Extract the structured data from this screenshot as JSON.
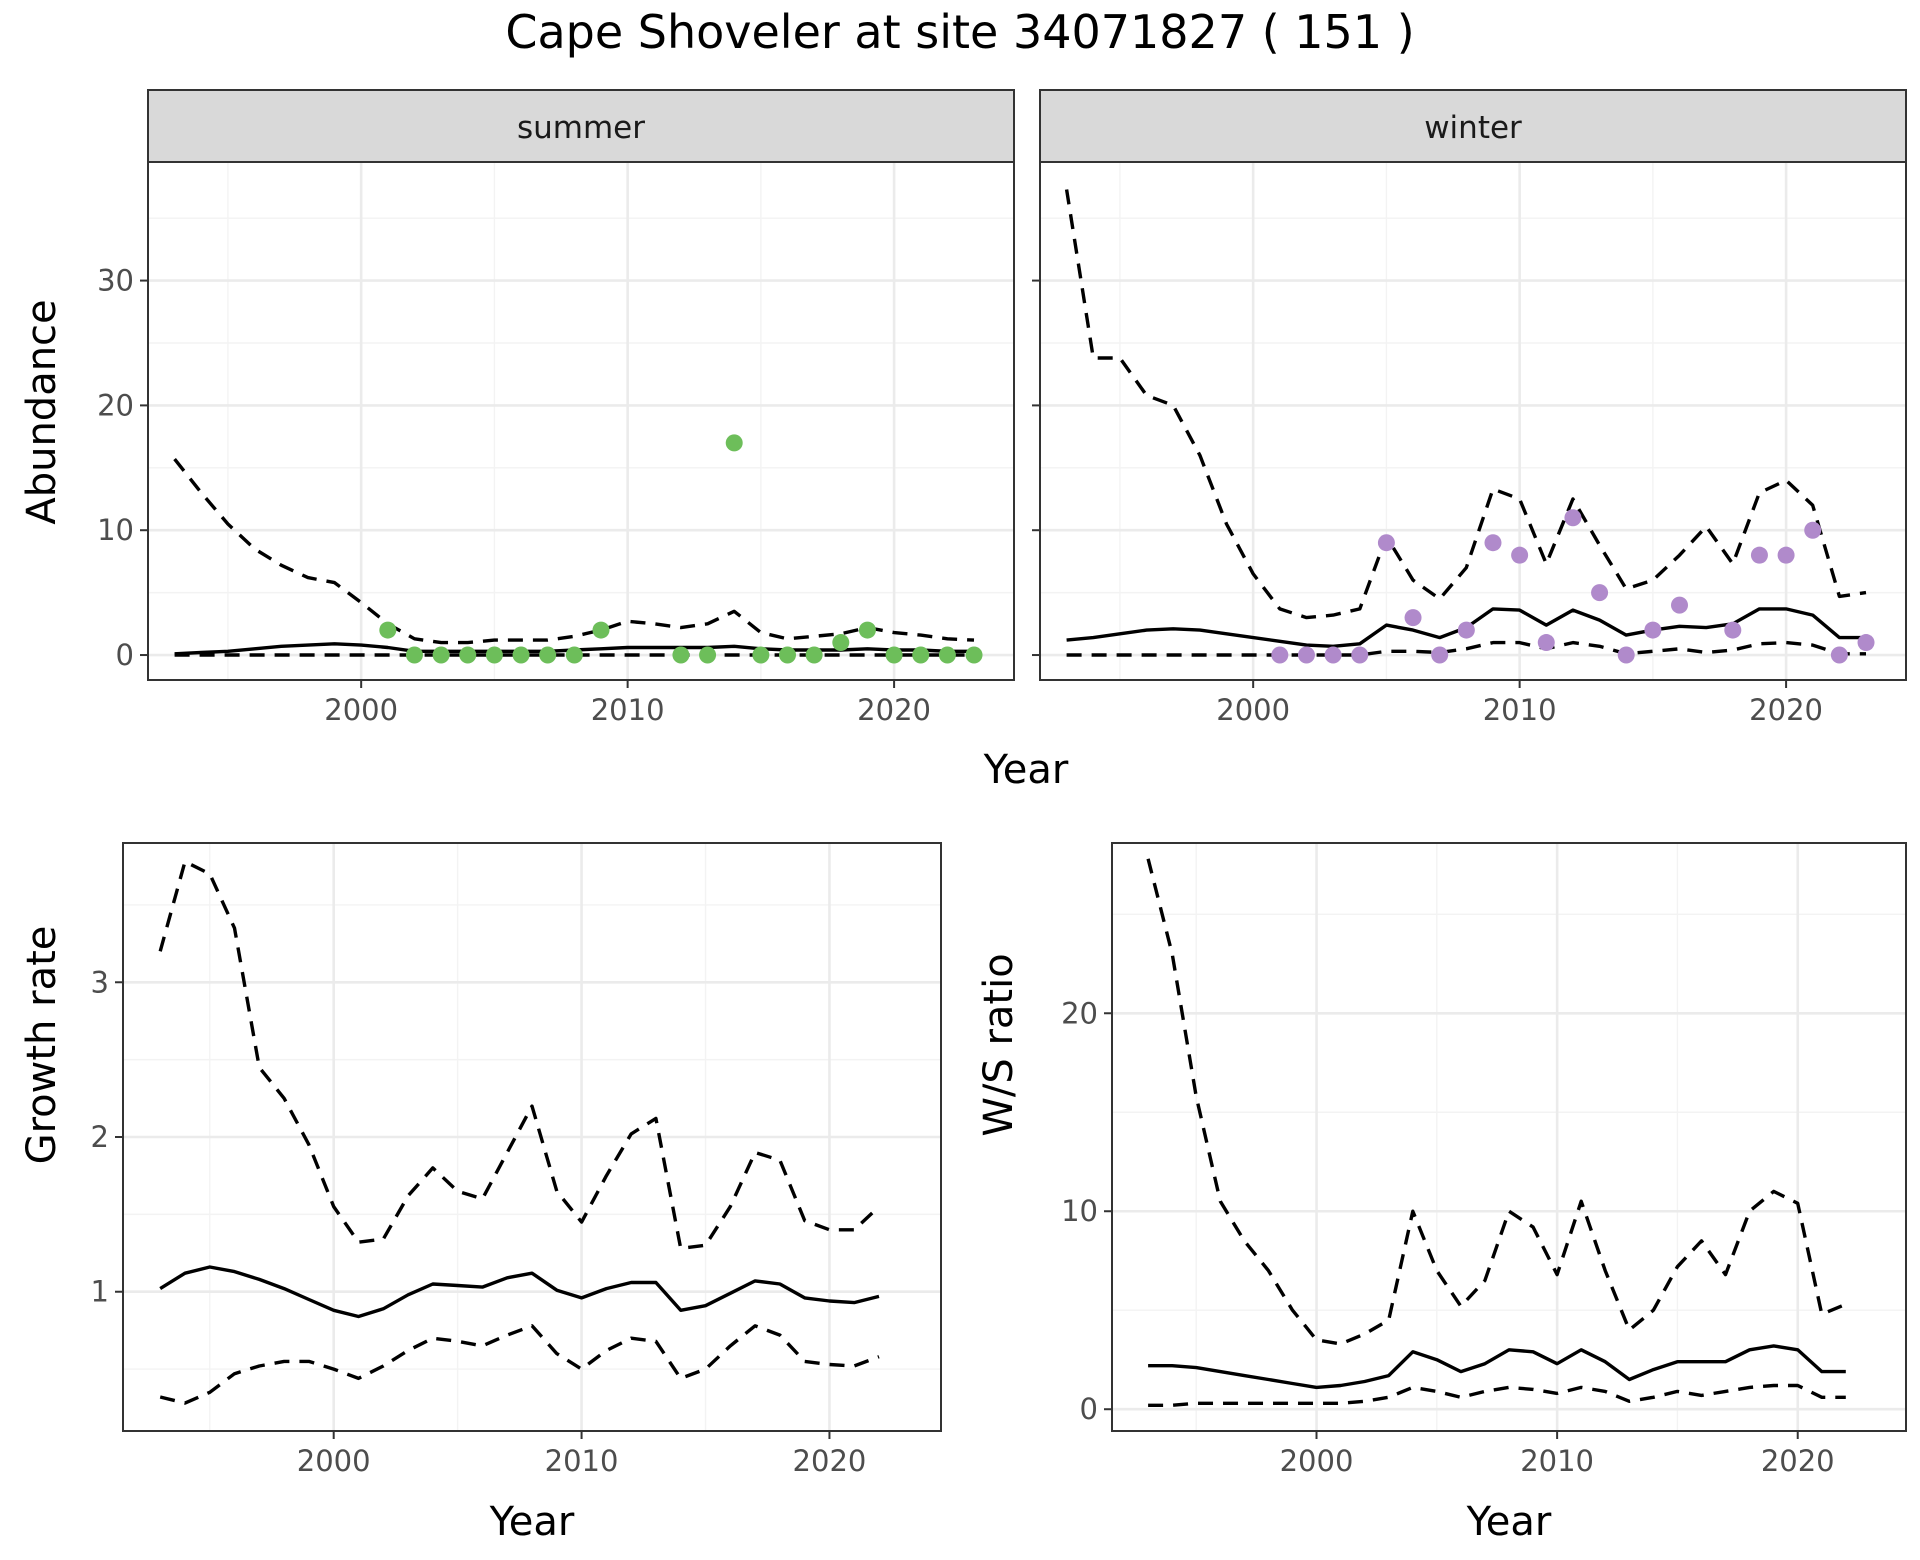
{
  "title": "Cape Shoveler at site 34071827 ( 151 )",
  "colors": {
    "summer_points": "#6dbe5a",
    "winter_points": "#b08acb",
    "lines": "#000000"
  },
  "chart_data": [
    {
      "id": "abundance-summer",
      "type": "line",
      "strip": "summer",
      "xlabel": "",
      "ylabel": "Abundance",
      "xlim": [
        1992,
        2024.5
      ],
      "ylim": [
        -2,
        39.5
      ],
      "xticks": [
        2000,
        2010,
        2020
      ],
      "yticks": [
        0,
        10,
        20,
        30
      ],
      "grid": true,
      "series": [
        {
          "style": "dashed",
          "x": [
            1993,
            1994,
            1995,
            1996,
            1997,
            1998,
            1999,
            2000,
            2001,
            2002,
            2003,
            2004,
            2005,
            2006,
            2007,
            2008,
            2009,
            2010,
            2011,
            2012,
            2013,
            2014,
            2015,
            2016,
            2017,
            2018,
            2019,
            2020,
            2021,
            2022,
            2023
          ],
          "y": [
            15.7,
            13,
            10.5,
            8.5,
            7.2,
            6.2,
            5.8,
            4.2,
            2.5,
            1.3,
            1.0,
            1.0,
            1.2,
            1.2,
            1.2,
            1.5,
            2.0,
            2.7,
            2.5,
            2.2,
            2.5,
            3.5,
            1.8,
            1.3,
            1.5,
            1.7,
            2.2,
            1.8,
            1.6,
            1.3,
            1.2
          ]
        },
        {
          "style": "solid",
          "x": [
            1993,
            1994,
            1995,
            1996,
            1997,
            1998,
            1999,
            2000,
            2001,
            2002,
            2003,
            2004,
            2005,
            2006,
            2007,
            2008,
            2009,
            2010,
            2011,
            2012,
            2013,
            2014,
            2015,
            2016,
            2017,
            2018,
            2019,
            2020,
            2021,
            2022,
            2023
          ],
          "y": [
            0.1,
            0.2,
            0.3,
            0.5,
            0.7,
            0.8,
            0.9,
            0.8,
            0.6,
            0.3,
            0.3,
            0.3,
            0.3,
            0.3,
            0.3,
            0.4,
            0.5,
            0.6,
            0.6,
            0.6,
            0.6,
            0.7,
            0.5,
            0.4,
            0.4,
            0.4,
            0.5,
            0.4,
            0.4,
            0.3,
            0.3
          ]
        },
        {
          "style": "dashed",
          "x": [
            1993,
            1994,
            1995,
            1996,
            1997,
            1998,
            1999,
            2000,
            2001,
            2002,
            2003,
            2004,
            2005,
            2006,
            2007,
            2008,
            2009,
            2010,
            2011,
            2012,
            2013,
            2014,
            2015,
            2016,
            2017,
            2018,
            2019,
            2020,
            2021,
            2022,
            2023
          ],
          "y": [
            0,
            0,
            0,
            0,
            0,
            0,
            0,
            0,
            0,
            0,
            0,
            0,
            0,
            0,
            0,
            0,
            0,
            0,
            0,
            0,
            0,
            0,
            0,
            0,
            0,
            0,
            0,
            0,
            0,
            0,
            0
          ]
        }
      ],
      "points": {
        "x": [
          2001,
          2002,
          2003,
          2004,
          2005,
          2006,
          2007,
          2008,
          2009,
          2012,
          2013,
          2014,
          2015,
          2016,
          2017,
          2018,
          2019,
          2020,
          2021,
          2022,
          2023
        ],
        "y": [
          2,
          0,
          0,
          0,
          0,
          0,
          0,
          0,
          2,
          0,
          0,
          17,
          0,
          0,
          0,
          1,
          2,
          0,
          0,
          0,
          0
        ]
      }
    },
    {
      "id": "abundance-winter",
      "type": "line",
      "strip": "winter",
      "xlabel": "",
      "ylabel": "",
      "xlim": [
        1992,
        2024.5
      ],
      "ylim": [
        -2,
        39.5
      ],
      "xticks": [
        2000,
        2010,
        2020
      ],
      "yticks": [
        0,
        10,
        20,
        30
      ],
      "grid": true,
      "series": [
        {
          "style": "dashed",
          "x": [
            1993,
            1994,
            1995,
            1996,
            1997,
            1998,
            1999,
            2000,
            2001,
            2002,
            2003,
            2004,
            2005,
            2006,
            2007,
            2008,
            2009,
            2010,
            2011,
            2012,
            2013,
            2014,
            2015,
            2016,
            2017,
            2018,
            2019,
            2020,
            2021,
            2022,
            2023
          ],
          "y": [
            37.3,
            23.8,
            23.8,
            20.8,
            20,
            16,
            10.5,
            6.5,
            3.7,
            3.0,
            3.2,
            3.7,
            9.5,
            6.0,
            4.5,
            7.0,
            13.3,
            12.5,
            7.3,
            12.5,
            8.8,
            5.3,
            6.0,
            8.0,
            10.3,
            7.3,
            13.0,
            14.0,
            12.0,
            4.7,
            5.0
          ]
        },
        {
          "style": "solid",
          "x": [
            1993,
            1994,
            1995,
            1996,
            1997,
            1998,
            1999,
            2000,
            2001,
            2002,
            2003,
            2004,
            2005,
            2006,
            2007,
            2008,
            2009,
            2010,
            2011,
            2012,
            2013,
            2014,
            2015,
            2016,
            2017,
            2018,
            2019,
            2020,
            2021,
            2022,
            2023
          ],
          "y": [
            1.2,
            1.4,
            1.7,
            2.0,
            2.1,
            2.0,
            1.7,
            1.4,
            1.1,
            0.8,
            0.7,
            0.9,
            2.4,
            2.0,
            1.4,
            2.2,
            3.7,
            3.6,
            2.4,
            3.6,
            2.8,
            1.6,
            2.0,
            2.3,
            2.2,
            2.5,
            3.7,
            3.7,
            3.2,
            1.4,
            1.4
          ]
        },
        {
          "style": "dashed",
          "x": [
            1993,
            1994,
            1995,
            1996,
            1997,
            1998,
            1999,
            2000,
            2001,
            2002,
            2003,
            2004,
            2005,
            2006,
            2007,
            2008,
            2009,
            2010,
            2011,
            2012,
            2013,
            2014,
            2015,
            2016,
            2017,
            2018,
            2019,
            2020,
            2021,
            2022,
            2023
          ],
          "y": [
            0,
            0,
            0,
            0,
            0,
            0,
            0,
            0,
            0,
            0,
            0,
            0,
            0.3,
            0.3,
            0.2,
            0.5,
            1.0,
            1.0,
            0.5,
            1.0,
            0.7,
            0.1,
            0.3,
            0.5,
            0.2,
            0.4,
            0.9,
            1.0,
            0.8,
            0.1,
            0.1
          ]
        }
      ],
      "points": {
        "x": [
          2001,
          2002,
          2003,
          2004,
          2005,
          2006,
          2007,
          2008,
          2009,
          2010,
          2011,
          2012,
          2013,
          2014,
          2015,
          2016,
          2018,
          2019,
          2020,
          2021,
          2022,
          2023
        ],
        "y": [
          0,
          0,
          0,
          0,
          9,
          3,
          0,
          2,
          9,
          8,
          1,
          11,
          5,
          0,
          2,
          4,
          2,
          8,
          8,
          10,
          0,
          1
        ]
      }
    },
    {
      "id": "growth-rate",
      "type": "line",
      "xlabel": "Year",
      "ylabel": "Growth rate",
      "xlim": [
        1991.5,
        2024.5
      ],
      "ylim": [
        0.1,
        3.9
      ],
      "xticks": [
        2000,
        2010,
        2020
      ],
      "yticks": [
        1,
        2,
        3
      ],
      "grid": true,
      "series": [
        {
          "style": "dashed",
          "x": [
            1993,
            1994,
            1995,
            1996,
            1997,
            1998,
            1999,
            2000,
            2001,
            2002,
            2003,
            2004,
            2005,
            2006,
            2007,
            2008,
            2009,
            2010,
            2011,
            2012,
            2013,
            2014,
            2015,
            2016,
            2017,
            2018,
            2019,
            2020,
            2021,
            2022
          ],
          "y": [
            3.2,
            3.78,
            3.7,
            3.35,
            2.45,
            2.25,
            1.95,
            1.55,
            1.32,
            1.34,
            1.62,
            1.8,
            1.65,
            1.6,
            1.9,
            2.2,
            1.65,
            1.45,
            1.75,
            2.02,
            2.12,
            1.28,
            1.3,
            1.55,
            1.9,
            1.85,
            1.46,
            1.4,
            1.4,
            1.55
          ]
        },
        {
          "style": "solid",
          "x": [
            1993,
            1994,
            1995,
            1996,
            1997,
            1998,
            1999,
            2000,
            2001,
            2002,
            2003,
            2004,
            2005,
            2006,
            2007,
            2008,
            2009,
            2010,
            2011,
            2012,
            2013,
            2014,
            2015,
            2016,
            2017,
            2018,
            2019,
            2020,
            2021,
            2022
          ],
          "y": [
            1.02,
            1.12,
            1.16,
            1.13,
            1.08,
            1.02,
            0.95,
            0.88,
            0.84,
            0.89,
            0.98,
            1.05,
            1.04,
            1.03,
            1.09,
            1.12,
            1.01,
            0.96,
            1.02,
            1.06,
            1.06,
            0.88,
            0.91,
            0.99,
            1.07,
            1.05,
            0.96,
            0.94,
            0.93,
            0.97
          ]
        },
        {
          "style": "dashed",
          "x": [
            1993,
            1994,
            1995,
            1996,
            1997,
            1998,
            1999,
            2000,
            2001,
            2002,
            2003,
            2004,
            2005,
            2006,
            2007,
            2008,
            2009,
            2010,
            2011,
            2012,
            2013,
            2014,
            2015,
            2016,
            2017,
            2018,
            2019,
            2020,
            2021,
            2022
          ],
          "y": [
            0.32,
            0.28,
            0.35,
            0.47,
            0.52,
            0.55,
            0.55,
            0.5,
            0.44,
            0.52,
            0.62,
            0.7,
            0.68,
            0.65,
            0.72,
            0.78,
            0.6,
            0.5,
            0.62,
            0.7,
            0.68,
            0.44,
            0.5,
            0.65,
            0.78,
            0.72,
            0.55,
            0.53,
            0.52,
            0.58
          ]
        }
      ]
    },
    {
      "id": "ws-ratio",
      "type": "line",
      "xlabel": "Year",
      "ylabel": "W/S ratio",
      "xlim": [
        1991.5,
        2024.5
      ],
      "ylim": [
        -1.1,
        28.6
      ],
      "xticks": [
        2000,
        2010,
        2020
      ],
      "yticks": [
        0,
        10,
        20
      ],
      "grid": true,
      "series": [
        {
          "style": "dashed",
          "x": [
            1993,
            1994,
            1995,
            1996,
            1997,
            1998,
            1999,
            2000,
            2001,
            2002,
            2003,
            2004,
            2005,
            2006,
            2007,
            2008,
            2009,
            2010,
            2011,
            2012,
            2013,
            2014,
            2015,
            2016,
            2017,
            2018,
            2019,
            2020,
            2021,
            2022
          ],
          "y": [
            27.8,
            23.0,
            15.8,
            10.5,
            8.5,
            7.0,
            5.0,
            3.5,
            3.3,
            3.8,
            4.5,
            10.0,
            7.0,
            5.2,
            6.5,
            10.0,
            9.2,
            6.8,
            10.5,
            7.0,
            4.0,
            5.0,
            7.2,
            8.5,
            6.8,
            10.0,
            11.0,
            10.4,
            4.8,
            5.3
          ]
        },
        {
          "style": "solid",
          "x": [
            1993,
            1994,
            1995,
            1996,
            1997,
            1998,
            1999,
            2000,
            2001,
            2002,
            2003,
            2004,
            2005,
            2006,
            2007,
            2008,
            2009,
            2010,
            2011,
            2012,
            2013,
            2014,
            2015,
            2016,
            2017,
            2018,
            2019,
            2020,
            2021,
            2022
          ],
          "y": [
            2.2,
            2.2,
            2.1,
            1.9,
            1.7,
            1.5,
            1.3,
            1.1,
            1.2,
            1.4,
            1.7,
            2.9,
            2.5,
            1.9,
            2.3,
            3.0,
            2.9,
            2.3,
            3.0,
            2.4,
            1.5,
            2.0,
            2.4,
            2.4,
            2.4,
            3.0,
            3.2,
            3.0,
            1.9,
            1.9
          ]
        },
        {
          "style": "dashed",
          "x": [
            1993,
            1994,
            1995,
            1996,
            1997,
            1998,
            1999,
            2000,
            2001,
            2002,
            2003,
            2004,
            2005,
            2006,
            2007,
            2008,
            2009,
            2010,
            2011,
            2012,
            2013,
            2014,
            2015,
            2016,
            2017,
            2018,
            2019,
            2020,
            2021,
            2022
          ],
          "y": [
            0.2,
            0.2,
            0.3,
            0.3,
            0.3,
            0.3,
            0.3,
            0.3,
            0.3,
            0.4,
            0.6,
            1.1,
            0.9,
            0.6,
            0.9,
            1.1,
            1.0,
            0.8,
            1.1,
            0.9,
            0.4,
            0.6,
            0.9,
            0.7,
            0.9,
            1.1,
            1.2,
            1.2,
            0.6,
            0.6
          ]
        }
      ]
    }
  ]
}
